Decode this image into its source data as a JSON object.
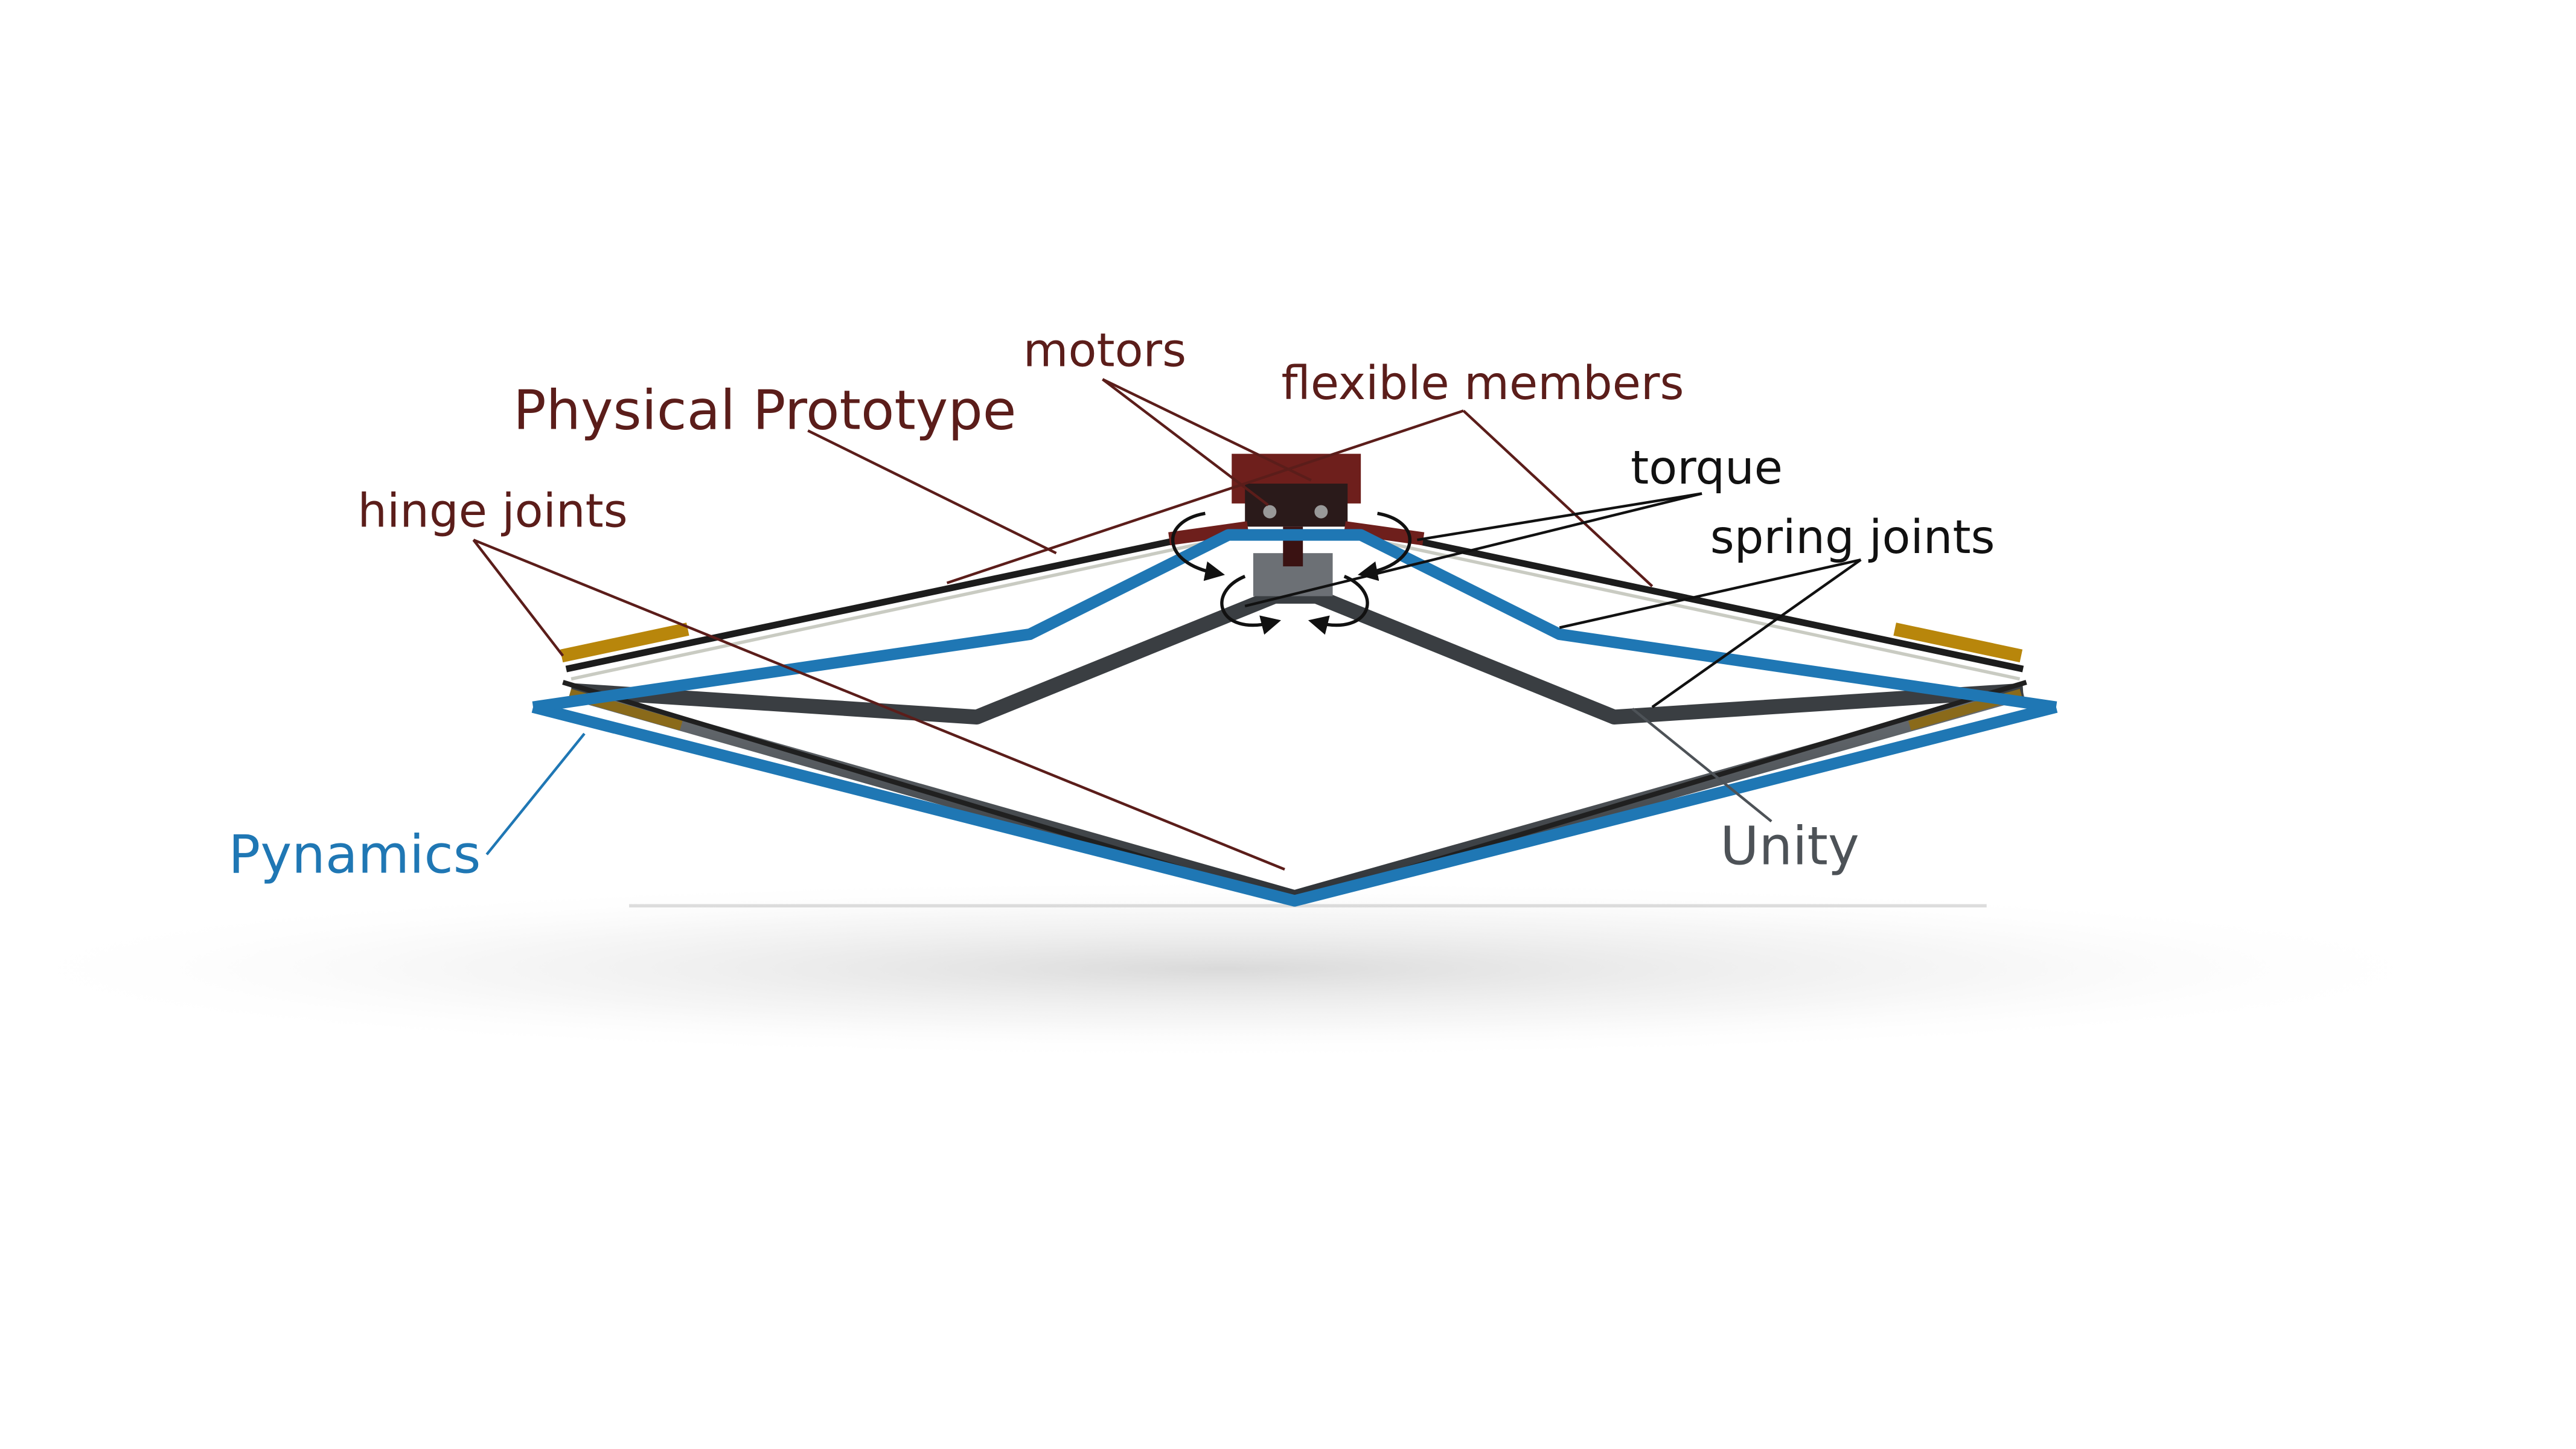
{
  "labels": {
    "physical_prototype": "Physical Prototype",
    "motors": "motors",
    "flexible_members": "flexible members",
    "hinge_joints": "hinge joints",
    "torque": "torque",
    "spring_joints": "spring joints",
    "pynamics": "Pynamics",
    "unity": "Unity"
  },
  "colors": {
    "physical_prototype": "#5b1d1a",
    "annotation_black": "#111111",
    "pynamics": "#1f77b4",
    "unity": "#4d5257",
    "hinge_brass": "#b8860b",
    "motor_body": "#6e1f1c"
  }
}
